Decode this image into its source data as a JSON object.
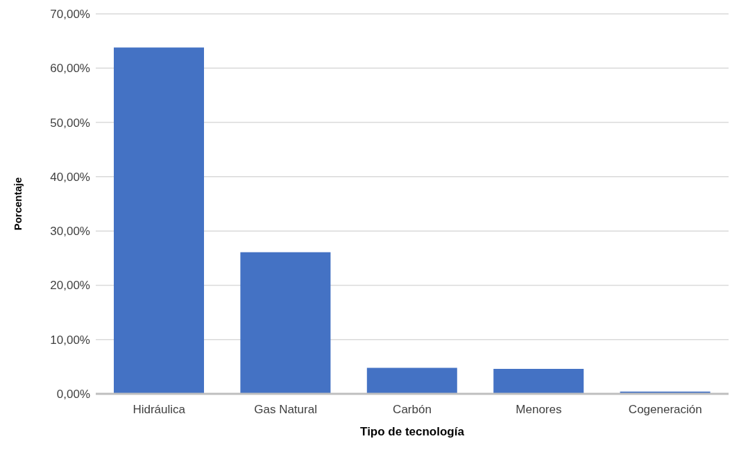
{
  "chart_data": {
    "type": "bar",
    "xlabel": "Tipo de tecnología",
    "ylabel": "Porcentaje",
    "categories": [
      "Hidráulica",
      "Gas Natural",
      "Carbón",
      "Menores",
      "Cogeneración"
    ],
    "values": [
      63.8,
      26.1,
      4.8,
      4.6,
      0.4
    ],
    "color": "#4472c4",
    "ylim": [
      0,
      70
    ],
    "yticks": [
      {
        "value": 0,
        "label": "0,00%"
      },
      {
        "value": 10,
        "label": "10,00%"
      },
      {
        "value": 20,
        "label": "20,00%"
      },
      {
        "value": 30,
        "label": "30,00%"
      },
      {
        "value": 40,
        "label": "40,00%"
      },
      {
        "value": 50,
        "label": "50,00%"
      },
      {
        "value": 60,
        "label": "60,00%"
      },
      {
        "value": 70,
        "label": "70,00%"
      }
    ],
    "grid": "y",
    "legend": false
  }
}
